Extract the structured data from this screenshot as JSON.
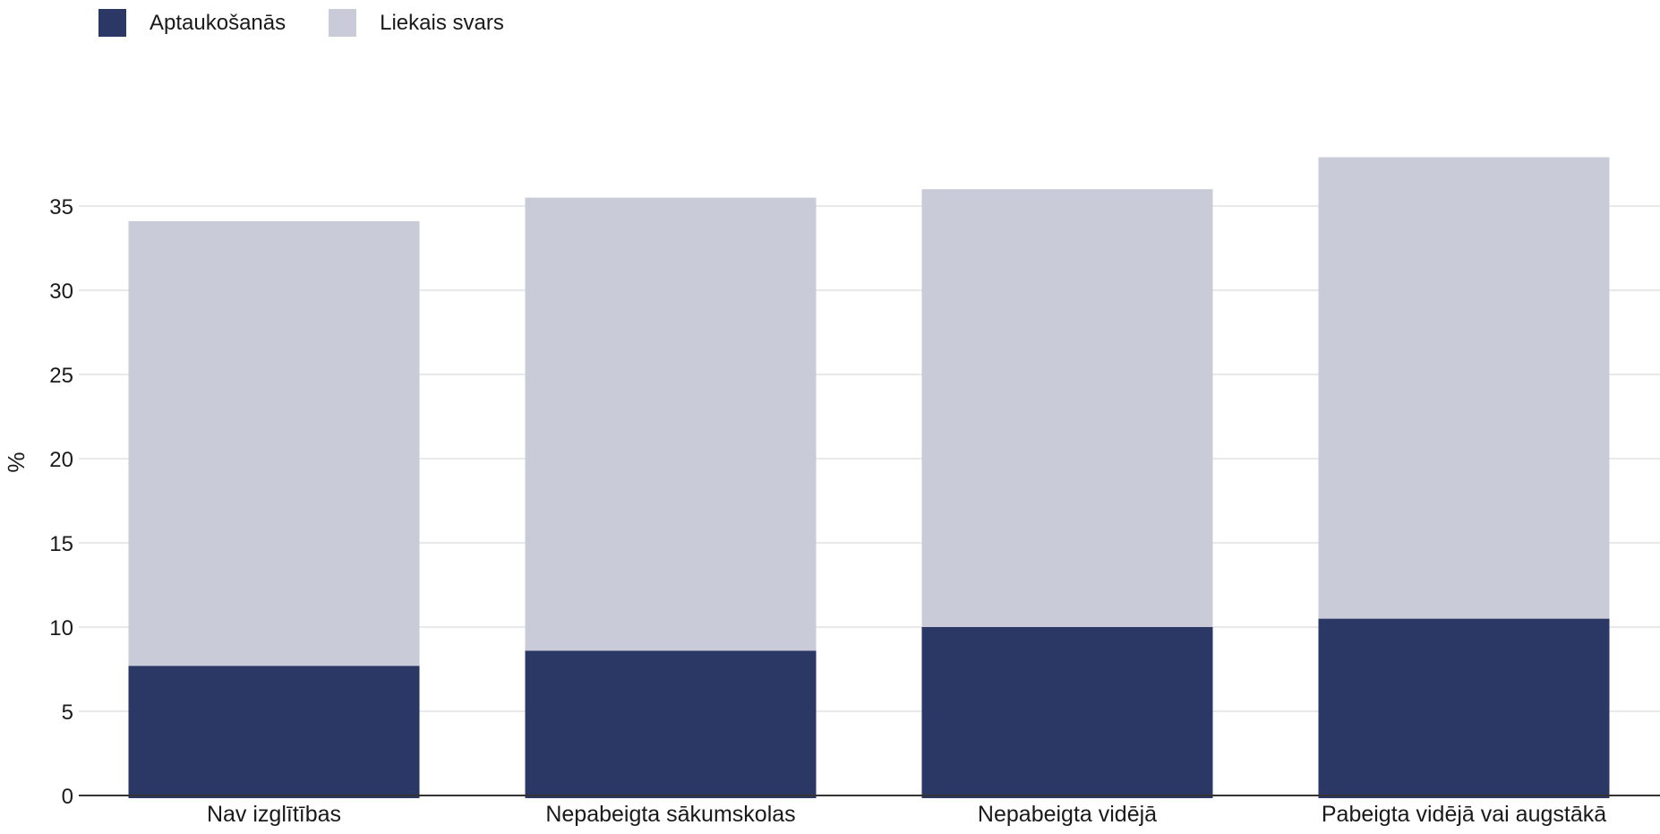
{
  "chart_data": {
    "type": "bar",
    "stacked": true,
    "categories": [
      "Nav izglītības",
      "Nepabeigta sākumskolas",
      "Nepabeigta vidējā",
      "Pabeigta vidējā vai augstākā"
    ],
    "series": [
      {
        "name": "Aptaukošanās",
        "color": "#2b3764",
        "values": [
          7.7,
          8.6,
          10.0,
          10.5
        ]
      },
      {
        "name": "Liekais svars",
        "color": "#cacbd8",
        "values": [
          26.4,
          26.9,
          26.0,
          27.4
        ]
      }
    ],
    "ylabel": "%",
    "xlabel": "",
    "ylim": [
      0,
      40
    ],
    "yticks": [
      0,
      5,
      10,
      15,
      20,
      25,
      30,
      35
    ],
    "grid": true,
    "legend_position": "top-left"
  }
}
